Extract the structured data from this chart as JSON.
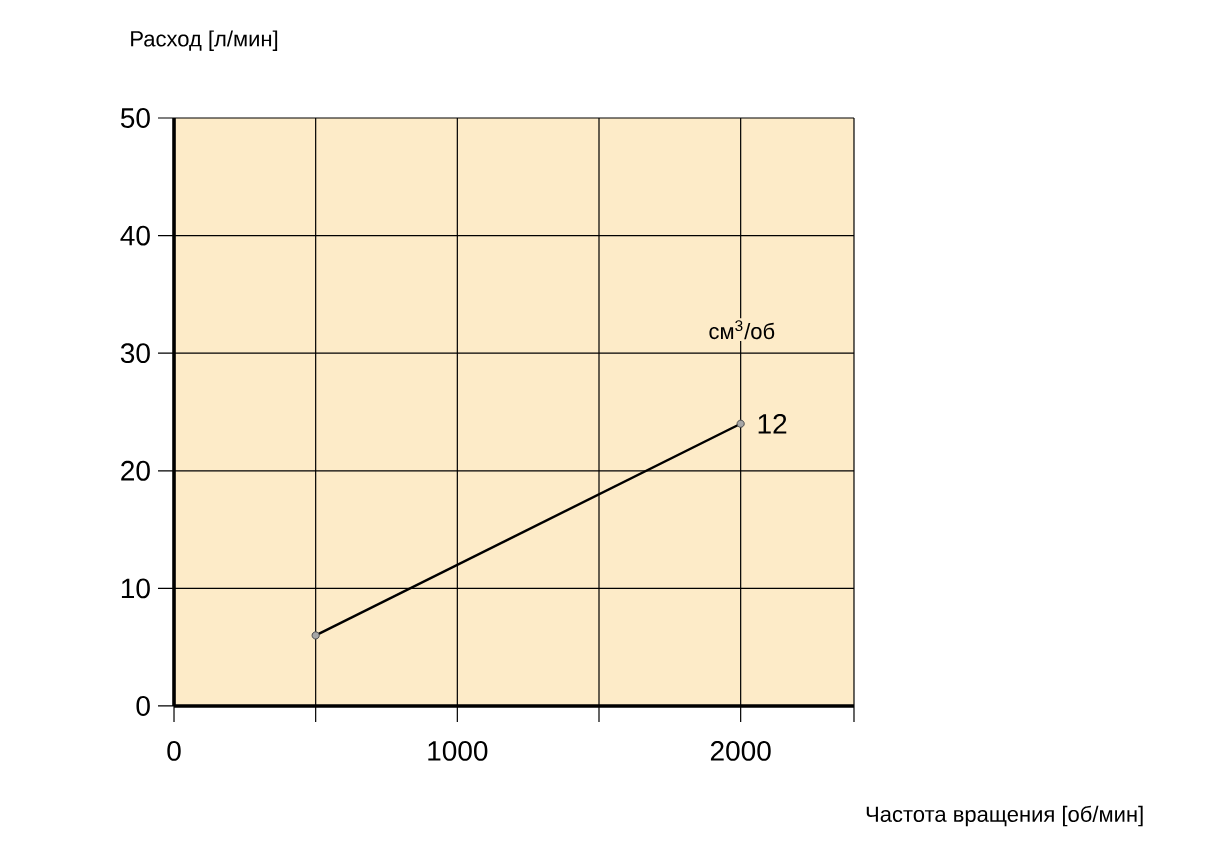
{
  "chart_data": {
    "type": "line",
    "xlabel": "Частота вращения [об/мин]",
    "ylabel": "Расход [л/мин]",
    "annotations": [
      "см$^{3}$/об"
    ],
    "x": [
      500,
      2000
    ],
    "series": [
      {
        "name": "12",
        "color": "#000000",
        "values": [
          6,
          24
        ]
      }
    ],
    "xlim": [
      0,
      2400
    ],
    "ylim": [
      0,
      50
    ],
    "xticks": [
      0,
      {
        "value": 500,
        "label": null
      },
      1000,
      {
        "value": 1500,
        "label": null
      },
      2000,
      {
        "value": 2400,
        "label": null
      }
    ],
    "yticks": [
      0,
      10,
      20,
      30,
      40,
      50
    ],
    "grid": true,
    "marker": "circle",
    "line_style": "solid",
    "legend": false
  }
}
